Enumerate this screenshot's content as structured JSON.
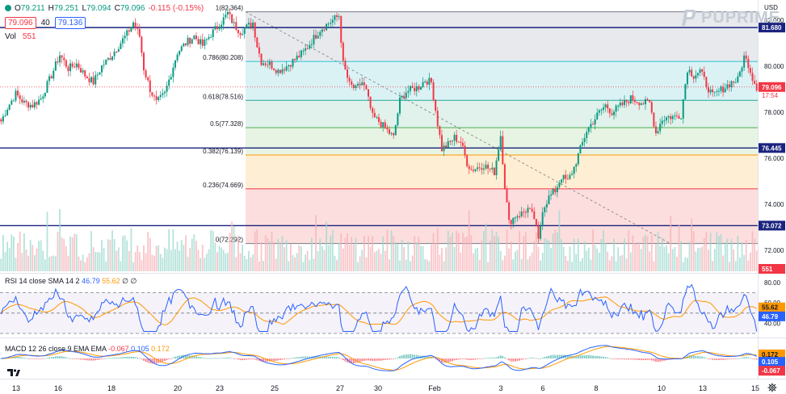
{
  "header": {
    "open_label": "O",
    "open": "79.211",
    "high_label": "H",
    "high": "79.251",
    "low_label": "L",
    "low": "79.094",
    "close_label": "C",
    "close": "79.096",
    "change": "-0.115 (-0.15%)",
    "bid": "79.096",
    "spread": "40",
    "ask": "79.136",
    "vol_label": "Vol",
    "vol_value": "551"
  },
  "logo": {
    "text": "PUPRIME"
  },
  "axis": {
    "currency": "USD"
  },
  "colors": {
    "up": "#089981",
    "down": "#f23645",
    "hline": "#1a237e",
    "rsi": "#2962ff",
    "rsi_sma": "#ff9800",
    "macd": "#2962ff",
    "signal": "#ff9800"
  },
  "chart_data": [
    {
      "type": "candlestick",
      "title": "",
      "y_range": [
        71.5,
        83.3
      ],
      "y_ticks": [
        "82.000",
        "80.000",
        "78.000",
        "76.000",
        "74.000",
        "72.000"
      ],
      "x_ticks": [
        "13",
        "16",
        "18",
        "20",
        "23",
        "25",
        "27",
        "30",
        "Feb",
        "3",
        "6",
        "8",
        "10",
        "13",
        "15"
      ],
      "last_price": "79.096",
      "countdown": "17:54",
      "volume_last": "551",
      "horizontal_lines": [
        "81.680",
        "76.445",
        "73.072"
      ],
      "fibonacci": [
        {
          "ratio": "1",
          "price": "82.364",
          "label": "1(82.364)"
        },
        {
          "ratio": "0.786",
          "price": "80.208",
          "label": "0.786(80.208)"
        },
        {
          "ratio": "0.618",
          "price": "78.516",
          "label": "0.618(78.516)"
        },
        {
          "ratio": "0.5",
          "price": "77.328",
          "label": "0.5(77.328)"
        },
        {
          "ratio": "0.382",
          "price": "76.139",
          "label": "0.382(76.139)"
        },
        {
          "ratio": "0.236",
          "price": "74.669",
          "label": "0.236(74.669)"
        },
        {
          "ratio": "0",
          "price": "72.292",
          "label": "0(72.292)"
        }
      ],
      "close_path": [
        [
          0,
          77.6
        ],
        [
          3,
          78.2
        ],
        [
          7,
          78.8
        ],
        [
          11,
          78.4
        ],
        [
          15,
          78.3
        ],
        [
          19,
          78.6
        ],
        [
          24,
          79.6
        ],
        [
          28,
          80.5
        ],
        [
          32,
          79.9
        ],
        [
          36,
          80.1
        ],
        [
          40,
          79.6
        ],
        [
          44,
          79.3
        ],
        [
          48,
          80.0
        ],
        [
          52,
          80.4
        ],
        [
          56,
          80.9
        ],
        [
          60,
          81.4
        ],
        [
          63,
          81.9
        ],
        [
          66,
          81.3
        ],
        [
          68,
          79.9
        ],
        [
          71,
          79.0
        ],
        [
          74,
          78.4
        ],
        [
          78,
          78.8
        ],
        [
          81,
          79.7
        ],
        [
          84,
          80.6
        ],
        [
          88,
          81.0
        ],
        [
          92,
          81.3
        ],
        [
          96,
          80.9
        ],
        [
          100,
          81.4
        ],
        [
          104,
          81.8
        ],
        [
          108,
          82.3
        ],
        [
          111,
          81.8
        ],
        [
          114,
          81.5
        ],
        [
          117,
          81.7
        ],
        [
          120,
          81.9
        ],
        [
          122,
          80.9
        ],
        [
          124,
          80.2
        ],
        [
          128,
          80.1
        ],
        [
          132,
          79.8
        ],
        [
          136,
          80.0
        ],
        [
          140,
          80.3
        ],
        [
          144,
          80.6
        ],
        [
          148,
          81.1
        ],
        [
          152,
          81.6
        ],
        [
          155,
          81.8
        ],
        [
          158,
          82.0
        ],
        [
          161,
          82.2
        ],
        [
          163,
          80.1
        ],
        [
          166,
          79.2
        ],
        [
          169,
          79.0
        ],
        [
          172,
          79.3
        ],
        [
          174,
          78.9
        ],
        [
          177,
          77.8
        ],
        [
          180,
          77.6
        ],
        [
          184,
          77.2
        ],
        [
          187,
          76.9
        ],
        [
          190,
          78.5
        ],
        [
          193,
          78.9
        ],
        [
          196,
          79.0
        ],
        [
          199,
          79.1
        ],
        [
          202,
          79.4
        ],
        [
          205,
          79.3
        ],
        [
          208,
          77.5
        ],
        [
          210,
          76.4
        ],
        [
          213,
          76.6
        ],
        [
          216,
          76.9
        ],
        [
          219,
          76.7
        ],
        [
          222,
          75.8
        ],
        [
          224,
          75.5
        ],
        [
          227,
          75.6
        ],
        [
          230,
          75.7
        ],
        [
          233,
          75.5
        ],
        [
          235,
          75.4
        ],
        [
          238,
          77.0
        ],
        [
          240,
          74.8
        ],
        [
          242,
          73.2
        ],
        [
          245,
          73.5
        ],
        [
          248,
          73.6
        ],
        [
          251,
          73.8
        ],
        [
          254,
          73.4
        ],
        [
          256,
          72.4
        ],
        [
          258,
          73.8
        ],
        [
          261,
          74.3
        ],
        [
          264,
          74.6
        ],
        [
          267,
          75.2
        ],
        [
          270,
          75.0
        ],
        [
          273,
          75.6
        ],
        [
          276,
          76.4
        ],
        [
          279,
          77.2
        ],
        [
          282,
          77.6
        ],
        [
          285,
          78.0
        ],
        [
          288,
          78.3
        ],
        [
          291,
          78.0
        ],
        [
          294,
          78.2
        ],
        [
          297,
          78.4
        ],
        [
          300,
          78.6
        ],
        [
          303,
          78.5
        ],
        [
          306,
          78.4
        ],
        [
          309,
          78.4
        ],
        [
          312,
          77.1
        ],
        [
          315,
          77.7
        ],
        [
          318,
          77.8
        ],
        [
          321,
          77.8
        ],
        [
          324,
          77.9
        ],
        [
          327,
          79.9
        ],
        [
          330,
          79.6
        ],
        [
          333,
          79.8
        ],
        [
          336,
          79.2
        ],
        [
          339,
          78.7
        ],
        [
          342,
          78.9
        ],
        [
          345,
          79.1
        ],
        [
          348,
          79.3
        ],
        [
          351,
          79.4
        ],
        [
          354,
          80.4
        ],
        [
          356,
          80.1
        ],
        [
          358,
          79.5
        ],
        [
          360,
          79.1
        ]
      ]
    },
    {
      "type": "line",
      "title": "RSI 14 close SMA 14 2",
      "y_range": [
        30,
        80
      ],
      "y_ticks": [
        "80.00",
        "60.00",
        "40.00"
      ],
      "series": [
        {
          "name": "RSI",
          "last": "46.79"
        },
        {
          "name": "SMA",
          "last": "55.62"
        }
      ],
      "extra_values": [
        "∅",
        "∅"
      ],
      "bands": [
        70,
        50,
        30
      ]
    },
    {
      "type": "line",
      "title": "MACD 12 26 close 9 EMA EMA",
      "y_range": [
        -1.0,
        1.1
      ],
      "series": [
        {
          "name": "Histogram",
          "last": "-0.067"
        },
        {
          "name": "MACD",
          "last": "0.105"
        },
        {
          "name": "Signal",
          "last": "0.172"
        }
      ]
    }
  ]
}
